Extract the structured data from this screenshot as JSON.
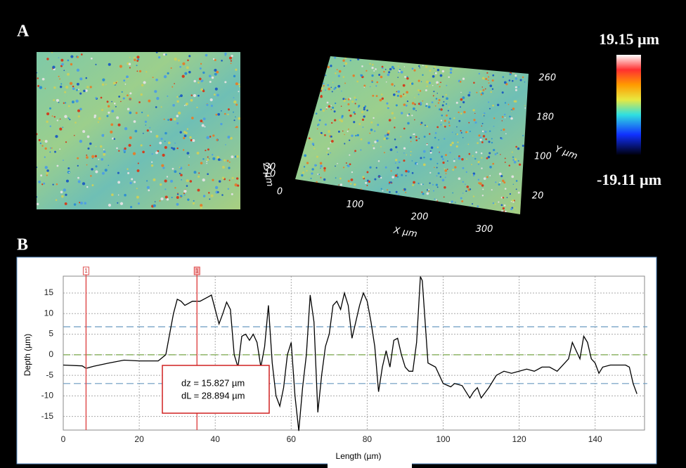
{
  "panel_a": {
    "label": "A",
    "x_axis_label": "X µm",
    "y_axis_label": "Y µm",
    "z_axis_label": "Z µm",
    "xticks": [
      100,
      200,
      300
    ],
    "yticks": [
      20,
      100,
      180,
      260
    ],
    "zticks": [
      0,
      10,
      30
    ],
    "colorbar_max": "19.15 µm",
    "colorbar_min": "-19.11 µm"
  },
  "panel_b": {
    "label": "B"
  },
  "chart_data": {
    "type": "line",
    "ylabel": "Depth (µm)",
    "xlabel": "Length (µm)",
    "x": [
      0,
      5,
      6,
      8,
      12,
      16,
      20,
      25,
      27,
      28,
      29,
      30,
      31,
      32,
      34,
      36,
      38,
      39,
      40,
      41,
      42,
      43,
      44,
      45,
      46,
      47,
      48,
      49,
      50,
      51,
      52,
      53,
      54,
      55,
      56,
      57,
      58,
      59,
      60,
      61,
      62,
      63,
      64,
      65,
      66,
      67,
      68,
      69,
      70,
      71,
      72,
      73,
      74,
      75,
      76,
      77,
      78,
      79,
      80,
      81,
      82,
      83,
      84,
      85,
      86,
      87,
      88,
      89,
      90,
      91,
      92,
      93,
      94,
      94.5,
      96,
      98,
      100,
      102,
      103,
      105,
      107,
      108,
      109,
      110,
      112,
      114,
      116,
      118,
      120,
      122,
      124,
      126,
      128,
      130,
      132,
      133,
      134,
      135,
      136,
      137,
      138,
      139,
      140,
      141,
      142,
      144,
      148,
      149,
      150,
      151
    ],
    "series": [
      {
        "color": "#000000",
        "values": [
          -2.5,
          -2.7,
          -3.3,
          -2.8,
          -2,
          -1.3,
          -1.5,
          -1.5,
          0,
          5,
          10,
          13.5,
          13,
          12,
          13,
          13,
          14,
          14.5,
          11,
          7.5,
          10,
          12.8,
          11,
          0,
          -3,
          4.5,
          5,
          3.5,
          5,
          3,
          -3,
          2,
          12,
          -2,
          -10,
          -12.5,
          -8,
          0,
          3,
          -10,
          -18.5,
          -8,
          0,
          14.5,
          8,
          -14,
          -5,
          2,
          5,
          12,
          13,
          11,
          15,
          12,
          4,
          8,
          12,
          15,
          13,
          8,
          2,
          -9,
          -3,
          1,
          -3,
          3.5,
          4,
          0,
          -3,
          -4,
          -4,
          3,
          19,
          18,
          -2,
          -3,
          -7,
          -7.8,
          -7,
          -7.5,
          -10.5,
          -9,
          -8,
          -10.5,
          -8,
          -5,
          -4,
          -4.5,
          -4,
          -3.5,
          -4,
          -3,
          -3,
          -4,
          -2,
          -1,
          3,
          1,
          -1,
          4.5,
          3,
          -1,
          -2,
          -4.5,
          -3,
          -2.5,
          -2.5,
          -3,
          -7,
          -9.5
        ]
      }
    ],
    "xlim": [
      0,
      153
    ],
    "ylim": [
      -18.3,
      19.1
    ],
    "xticks": [
      0,
      20,
      40,
      60,
      80,
      100,
      120,
      140
    ],
    "yticks": [
      -15,
      -10,
      -5,
      0,
      5,
      10,
      15
    ],
    "grid": true,
    "cursors": [
      {
        "x": 6,
        "label": "1",
        "color": "#e05050"
      },
      {
        "x": 35.2,
        "label": "1",
        "color": "#e05050"
      }
    ],
    "reference_lines": [
      {
        "value": 6.8,
        "color": "#6a9ac0"
      },
      {
        "value": 0,
        "color": "#7aa84a"
      },
      {
        "value": -7,
        "color": "#6a9ac0"
      }
    ],
    "annotation": [
      "dz = 15.827 µm",
      "dL = 28.894 µm"
    ]
  }
}
